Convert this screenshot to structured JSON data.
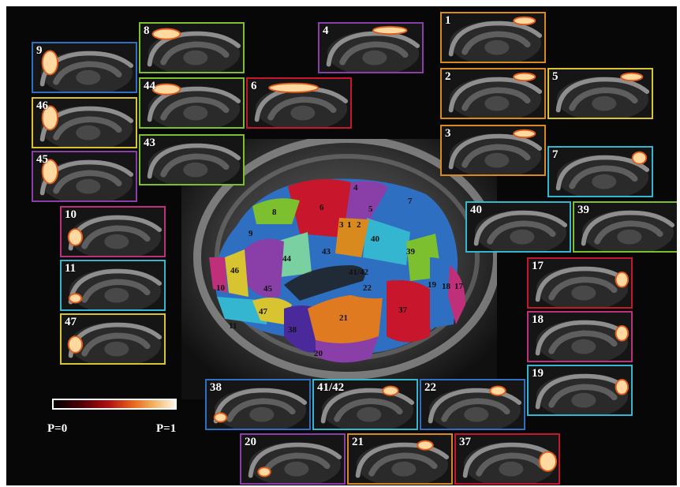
{
  "colors": {
    "orange": "#d98a1e",
    "green": "#7cbf2f",
    "blue": "#2f6fc2",
    "purple": "#8a3fa8",
    "red": "#c8162c",
    "yellow": "#d8c430",
    "cyan": "#34b6d0",
    "magenta": "#c0307a"
  },
  "panels": [
    {
      "label": "1",
      "border": "#d98a1e",
      "hotspot": "top-right"
    },
    {
      "label": "2",
      "border": "#d98a1e",
      "hotspot": "top-right"
    },
    {
      "label": "3",
      "border": "#d98a1e",
      "hotspot": "top-right"
    },
    {
      "label": "4",
      "border": "#8a3fa8",
      "hotspot": "top"
    },
    {
      "label": "5",
      "border": "#d8c430",
      "hotspot": "top-right"
    },
    {
      "label": "6",
      "border": "#c8162c",
      "hotspot": "top-wide"
    },
    {
      "label": "7",
      "border": "#34b6d0",
      "hotspot": "right-top"
    },
    {
      "label": "8",
      "border": "#7cbf2f",
      "hotspot": "front-top"
    },
    {
      "label": "9",
      "border": "#2f6fc2",
      "hotspot": "front"
    },
    {
      "label": "10",
      "border": "#c0307a",
      "hotspot": "front-low"
    },
    {
      "label": "11",
      "border": "#34b6d0",
      "hotspot": "front-bottom"
    },
    {
      "label": "17",
      "border": "#c8162c",
      "hotspot": "back"
    },
    {
      "label": "18",
      "border": "#c0307a",
      "hotspot": "back"
    },
    {
      "label": "19",
      "border": "#34b6d0",
      "hotspot": "back"
    },
    {
      "label": "20",
      "border": "#8a3fa8",
      "hotspot": "bottom"
    },
    {
      "label": "21",
      "border": "#d98a1e",
      "hotspot": "mid"
    },
    {
      "label": "22",
      "border": "#2f6fc2",
      "hotspot": "mid"
    },
    {
      "label": "37",
      "border": "#c8162c",
      "hotspot": "back-low"
    },
    {
      "label": "38",
      "border": "#2f6fc2",
      "hotspot": "front-bottom"
    },
    {
      "label": "39",
      "border": "#7cbf2f",
      "hotspot": "none"
    },
    {
      "label": "40",
      "border": "#34b6d0",
      "hotspot": "none"
    },
    {
      "label": "41/42",
      "border": "#34b6d0",
      "hotspot": "mid"
    },
    {
      "label": "43",
      "border": "#7cbf2f",
      "hotspot": "none"
    },
    {
      "label": "44",
      "border": "#7cbf2f",
      "hotspot": "front-top"
    },
    {
      "label": "45",
      "border": "#8a3fa8",
      "hotspot": "front"
    },
    {
      "label": "46",
      "border": "#d8c430",
      "hotspot": "front"
    },
    {
      "label": "47",
      "border": "#d8c430",
      "hotspot": "front-low"
    }
  ],
  "brain_labels": [
    "4",
    "6",
    "7",
    "8",
    "9",
    "3",
    "1",
    "2",
    "5",
    "40",
    "39",
    "43",
    "44",
    "41/42",
    "46",
    "10",
    "45",
    "22",
    "19",
    "18",
    "17",
    "47",
    "11",
    "21",
    "37",
    "38",
    "20"
  ],
  "colorbar": {
    "min_label": "P=0",
    "max_label": "P=1"
  }
}
